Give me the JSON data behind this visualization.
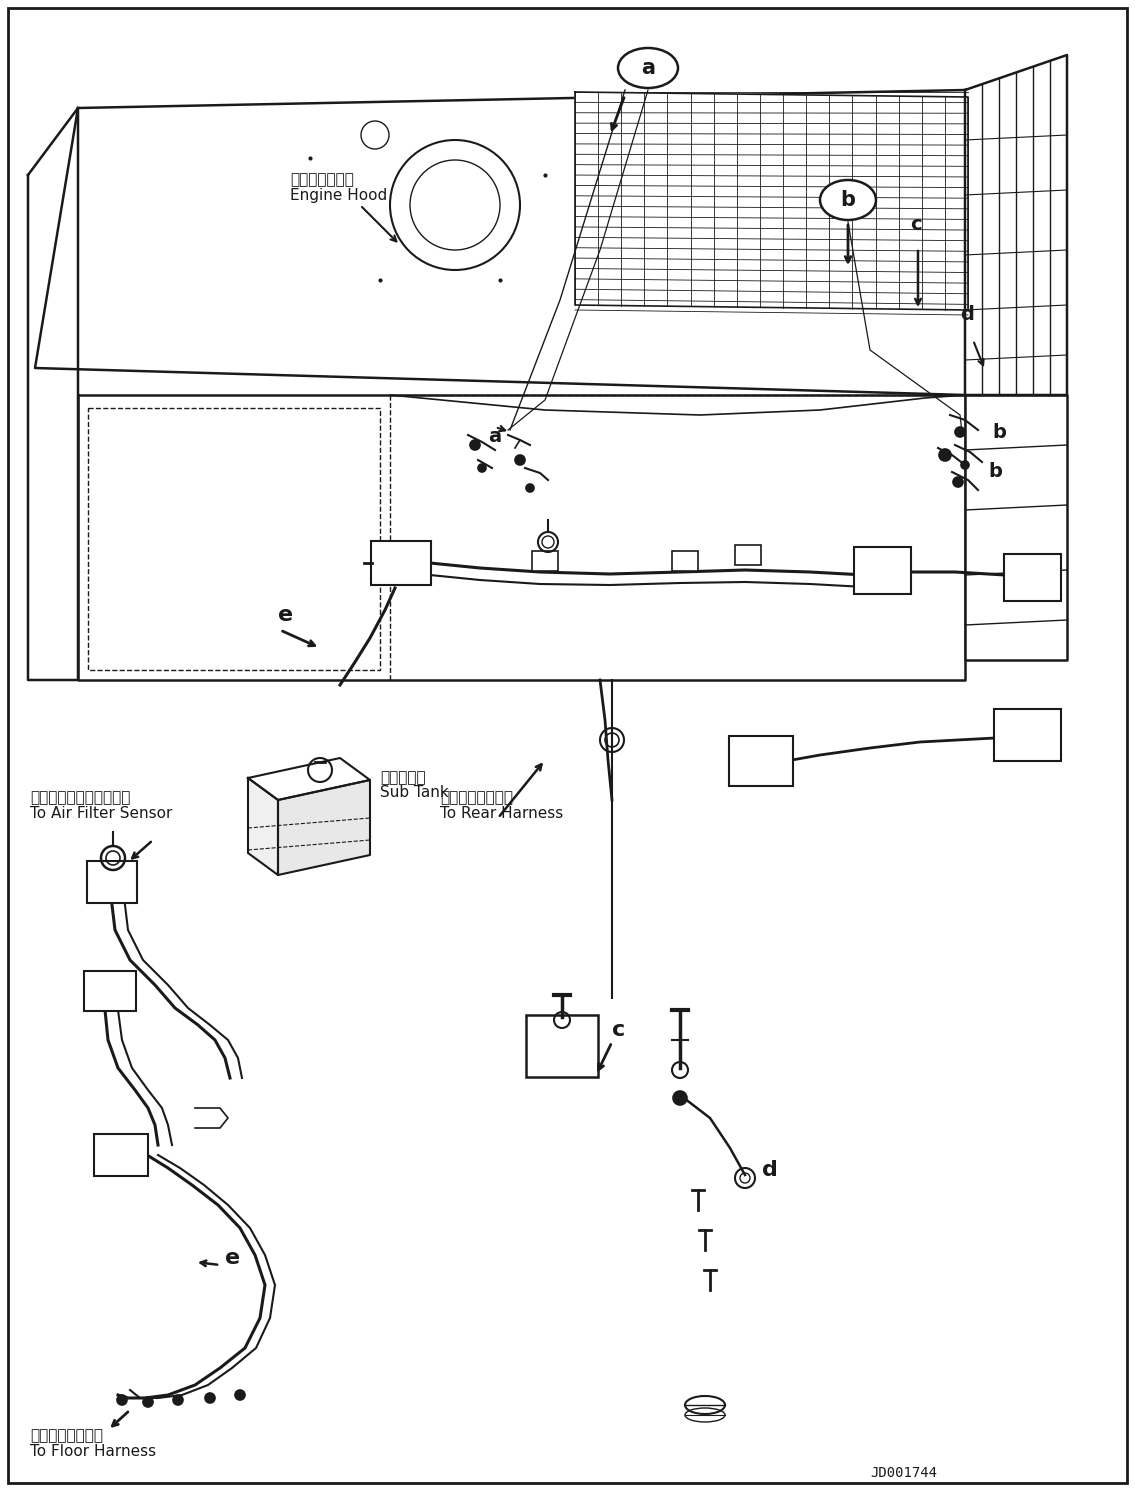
{
  "bg_color": "#ffffff",
  "line_color": "#1a1a1a",
  "fig_width": 11.35,
  "fig_height": 14.91,
  "dpi": 100,
  "diagram_id": "JD001744",
  "labels": {
    "engine_hood_jp": "エンジンフード",
    "engine_hood_en": "Engine Hood",
    "air_filter_jp": "エアーフィルタセンサへ",
    "air_filter_en": "To Air Filter Sensor",
    "sub_tank_jp": "サブタンク",
    "sub_tank_en": "Sub Tank",
    "rear_harness_jp": "リヤーハーネスへ",
    "rear_harness_en": "To Rear Harness",
    "floor_harness_jp": "フロアハーネスへ",
    "floor_harness_en": "To Floor Harness"
  }
}
